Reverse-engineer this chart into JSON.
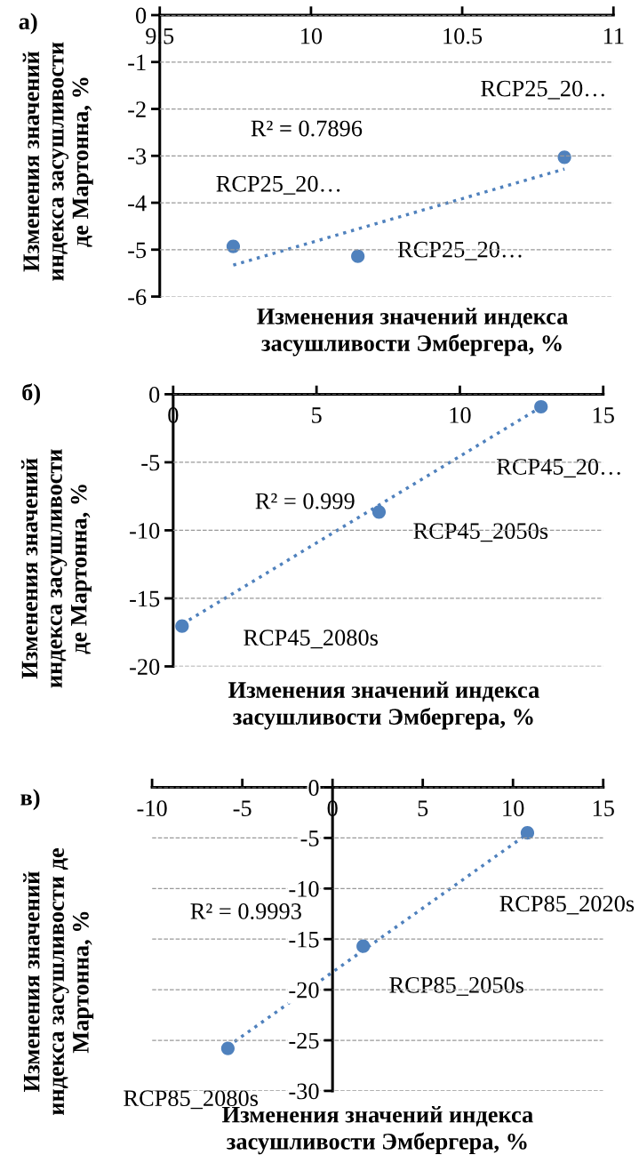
{
  "chart_data": [
    {
      "type": "scatter",
      "title": "а)",
      "xlabel": "Изменения значений индекса\nзасушливости Эмбергера, %",
      "ylabel": "Изменения значений\nиндекса засушливости\nде Мартонна, %",
      "xlim": [
        9.5,
        11
      ],
      "xticks": [
        9.5,
        10,
        10.5,
        11
      ],
      "ylim": [
        -6,
        0
      ],
      "yticks": [
        0,
        -1,
        -2,
        -3,
        -4,
        -5,
        -6
      ],
      "grid": "y",
      "series": [
        {
          "color": "#4f81bd",
          "marker": "circle",
          "x": [
            9.743,
            10.155,
            10.838
          ],
          "values": [
            -4.93,
            -5.14,
            -3.03
          ]
        },
        {
          "type": "line",
          "color": "#4f81bd",
          "line_style": "dotted",
          "marker": "none",
          "x": [
            9.743,
            10.838
          ],
          "values": [
            -5.33,
            -3.28
          ]
        }
      ],
      "annotations": [
        "R² = 0.7896",
        {
          "text": "RCP25_20…",
          "x": 9.743,
          "y": -4.93
        },
        "RCP25_20…",
        {
          "text": "RCP25_20…",
          "x": 10.838,
          "y": -3.03
        }
      ]
    },
    {
      "type": "scatter",
      "title": "б)",
      "xlabel": "Изменения значений индекса\nзасушливости Эмбергера, %",
      "ylabel": "Изменения значений\nиндекса засушливости\nде Мартонна, %",
      "xlim": [
        0,
        15
      ],
      "xticks": [
        0,
        5,
        10,
        15
      ],
      "ylim": [
        -20,
        0
      ],
      "yticks": [
        0,
        -5,
        -10,
        -15,
        -20
      ],
      "grid": "y",
      "series": [
        {
          "color": "#4f81bd",
          "marker": "circle",
          "x": [
            0.31,
            7.18,
            12.83
          ],
          "values": [
            -17.04,
            -8.65,
            -0.92
          ]
        },
        {
          "type": "line",
          "color": "#4f81bd",
          "line_style": "dotted",
          "marker": "none",
          "x": [
            0.31,
            12.83
          ],
          "values": [
            -16.9,
            -0.95
          ]
        }
      ],
      "annotations": [
        "R² = 0.999",
        "RCP45_2080s",
        "RCP45_2050s",
        "RCP45_20…"
      ]
    },
    {
      "type": "scatter",
      "title": "в)",
      "xlabel": "Изменения значений индекса\nзасушливости Эмбергера, %",
      "ylabel": "Изменения значений\nиндекса засушливости де\nМартонна, %",
      "xlim": [
        -10,
        15
      ],
      "xticks": [
        -10,
        -5,
        0,
        5,
        10,
        15
      ],
      "ylim": [
        -30,
        0
      ],
      "yticks": [
        0,
        -5,
        -10,
        -15,
        -20,
        -25,
        -30
      ],
      "grid": "y",
      "series": [
        {
          "color": "#4f81bd",
          "marker": "circle",
          "x": [
            -5.8,
            1.7,
            10.8
          ],
          "values": [
            -25.8,
            -15.7,
            -4.5
          ]
        },
        {
          "type": "line",
          "color": "#4f81bd",
          "line_style": "dotted",
          "marker": "none",
          "x": [
            -5.8,
            10.8
          ],
          "values": [
            -25.6,
            -4.6
          ]
        }
      ],
      "annotations": [
        "R² = 0.9993",
        {
          "text": "RCP85_2080s",
          "x": -5.8,
          "y": -25.8
        },
        "RCP85_2050s",
        {
          "text": "RCP85_2020s",
          "x": 10.8,
          "y": -4.5
        }
      ]
    }
  ]
}
